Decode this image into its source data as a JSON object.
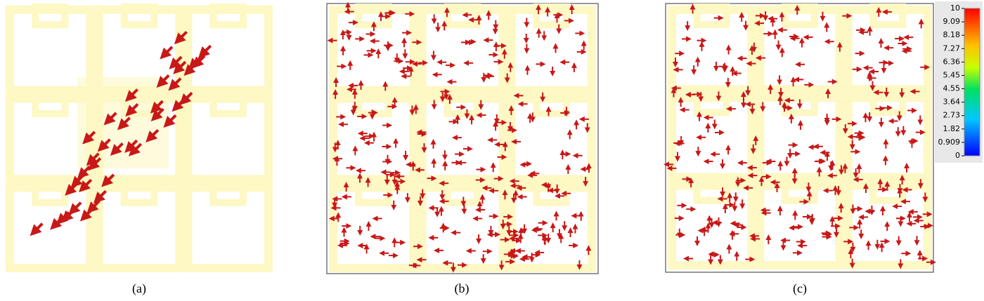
{
  "panels": [
    {
      "caption": "(a)"
    },
    {
      "caption": "(b)"
    },
    {
      "caption": "(c)"
    }
  ],
  "colorbar": {
    "lim": [
      0,
      10
    ],
    "ticks": [
      10,
      9.09,
      8.18,
      7.27,
      6.36,
      5.45,
      4.55,
      3.64,
      2.73,
      1.82,
      0.909,
      0
    ]
  }
}
